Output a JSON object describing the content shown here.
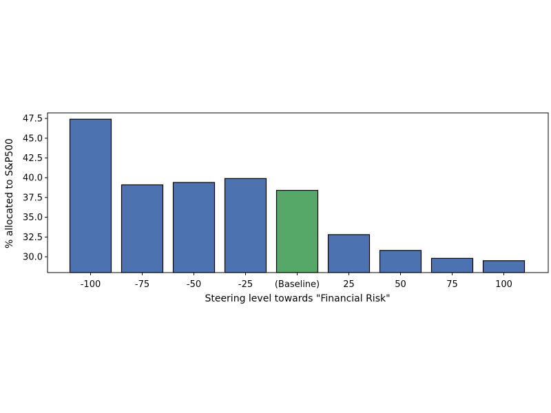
{
  "chart_data": {
    "type": "bar",
    "categories": [
      "-100",
      "-75",
      "-50",
      "-25",
      "(Baseline)",
      "25",
      "50",
      "75",
      "100"
    ],
    "values": [
      47.4,
      39.1,
      39.4,
      39.9,
      38.4,
      32.8,
      30.8,
      29.8,
      29.5
    ],
    "bar_colors": [
      "#4c72b0",
      "#4c72b0",
      "#4c72b0",
      "#4c72b0",
      "#55a868",
      "#4c72b0",
      "#4c72b0",
      "#4c72b0",
      "#4c72b0"
    ],
    "edge_color": "#000000",
    "xlabel": "Steering level towards \"Financial Risk\"",
    "ylabel": "% allocated to S&P500",
    "ylim": [
      28.0,
      48.2
    ],
    "yticks": [
      30.0,
      32.5,
      35.0,
      37.5,
      40.0,
      42.5,
      45.0,
      47.5
    ],
    "ytick_labels": [
      "30.0",
      "32.5",
      "35.0",
      "37.5",
      "40.0",
      "42.5",
      "45.0",
      "47.5"
    ],
    "grid": false,
    "legend": "none"
  }
}
